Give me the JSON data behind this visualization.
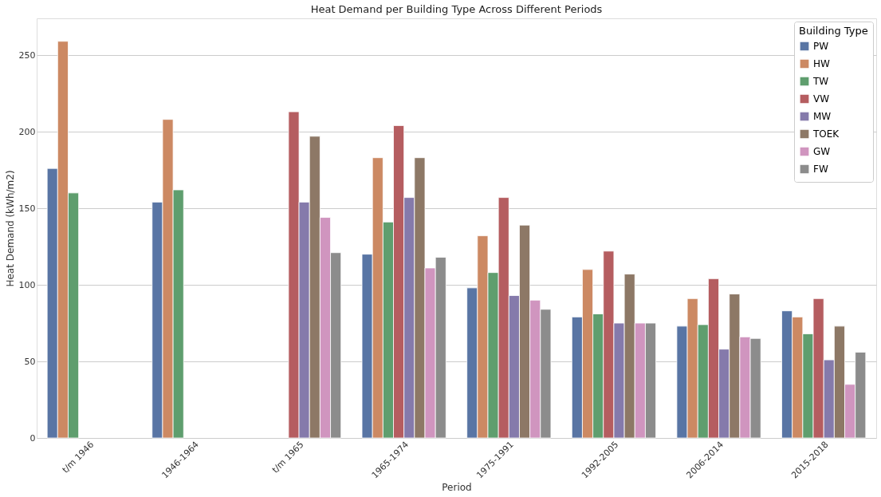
{
  "chart_data": {
    "type": "bar",
    "title": "Heat Demand per Building Type Across Different Periods",
    "xlabel": "Period",
    "ylabel": "Heat Demand (kWh/m2)",
    "legend_title": "Building Type",
    "categories": [
      "t/m 1946",
      "1946-1964",
      "t/m 1965",
      "1965-1974",
      "1975-1991",
      "1992-2005",
      "2006-2014",
      "2015-2018"
    ],
    "series": [
      {
        "name": "PW",
        "color": "#5975a4",
        "values": [
          176,
          154,
          null,
          120,
          98,
          79,
          73,
          83
        ]
      },
      {
        "name": "HW",
        "color": "#cc8963",
        "values": [
          259,
          208,
          null,
          183,
          132,
          110,
          91,
          79
        ]
      },
      {
        "name": "TW",
        "color": "#5f9e6e",
        "values": [
          160,
          162,
          null,
          141,
          108,
          81,
          74,
          68
        ]
      },
      {
        "name": "VW",
        "color": "#b55d60",
        "values": [
          null,
          null,
          213,
          204,
          157,
          122,
          104,
          91
        ]
      },
      {
        "name": "MW",
        "color": "#857aab",
        "values": [
          null,
          null,
          154,
          157,
          93,
          75,
          58,
          51
        ]
      },
      {
        "name": "TOEK",
        "color": "#8d7866",
        "values": [
          null,
          null,
          197,
          183,
          139,
          107,
          94,
          73
        ]
      },
      {
        "name": "GW",
        "color": "#d095bf",
        "values": [
          null,
          null,
          144,
          111,
          90,
          75,
          66,
          35
        ]
      },
      {
        "name": "FW",
        "color": "#8c8c8c",
        "values": [
          null,
          null,
          121,
          118,
          84,
          75,
          65,
          56
        ]
      }
    ],
    "ylim": [
      0,
      274
    ],
    "yticks": [
      0,
      50,
      100,
      150,
      200,
      250
    ],
    "grid": "y",
    "legend": "top right"
  }
}
